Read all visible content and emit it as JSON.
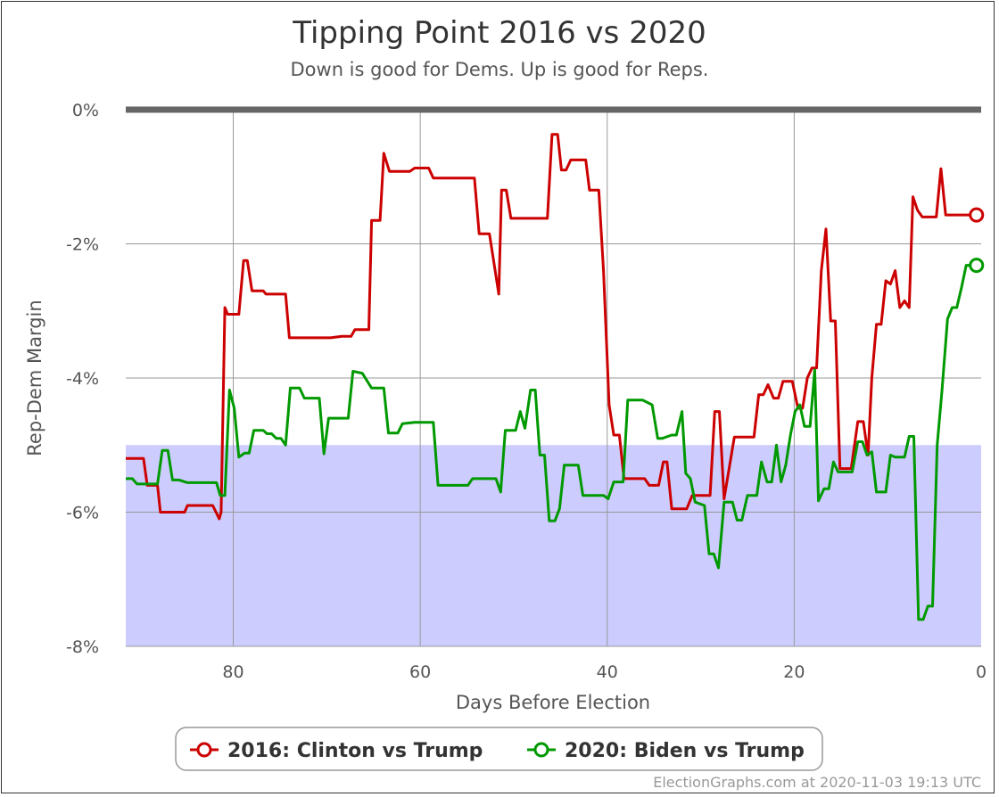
{
  "chart_data": {
    "type": "line",
    "title": "Tipping Point 2016 vs 2020",
    "subtitle": "Down is good for Dems. Up is good for Reps.",
    "xlabel": "Days Before Election",
    "ylabel": "Rep-Dem Margin",
    "x_reversed": true,
    "xlim": [
      91.5,
      0
    ],
    "ylim": [
      -8,
      0
    ],
    "x_ticks": [
      80,
      60,
      40,
      20,
      0
    ],
    "x_tick_labels": [
      "80",
      "60",
      "40",
      "20",
      "0"
    ],
    "y_ticks": [
      0,
      -2,
      -4,
      -6,
      -8
    ],
    "y_tick_labels": [
      "0%",
      "-2%",
      "-4%",
      "-6%",
      "-8%"
    ],
    "shaded_band": {
      "from": -5,
      "to": -8,
      "color": "#ccccff"
    },
    "grid": true,
    "legend_position": "bottom-center",
    "series": [
      {
        "name": "2016: Clinton vs Trump",
        "color": "#cc0000",
        "points": [
          [
            91.5,
            -5.2
          ],
          [
            89.6,
            -5.2
          ],
          [
            89.2,
            -5.6
          ],
          [
            88.1,
            -5.6
          ],
          [
            87.8,
            -6.0
          ],
          [
            85.2,
            -6.0
          ],
          [
            84.9,
            -5.9
          ],
          [
            82.2,
            -5.9
          ],
          [
            81.5,
            -6.1
          ],
          [
            81.3,
            -6.0
          ],
          [
            80.9,
            -2.95
          ],
          [
            80.6,
            -3.05
          ],
          [
            79.4,
            -3.05
          ],
          [
            78.9,
            -2.25
          ],
          [
            78.5,
            -2.25
          ],
          [
            78.0,
            -2.7
          ],
          [
            76.8,
            -2.7
          ],
          [
            76.5,
            -2.75
          ],
          [
            74.4,
            -2.75
          ],
          [
            74.0,
            -3.4
          ],
          [
            69.6,
            -3.4
          ],
          [
            68.4,
            -3.38
          ],
          [
            67.4,
            -3.38
          ],
          [
            67.0,
            -3.28
          ],
          [
            65.5,
            -3.28
          ],
          [
            65.2,
            -1.65
          ],
          [
            64.3,
            -1.65
          ],
          [
            63.9,
            -0.65
          ],
          [
            63.3,
            -0.92
          ],
          [
            61.1,
            -0.92
          ],
          [
            60.6,
            -0.87
          ],
          [
            59.1,
            -0.87
          ],
          [
            58.6,
            -1.02
          ],
          [
            54.2,
            -1.02
          ],
          [
            53.7,
            -1.85
          ],
          [
            52.6,
            -1.85
          ],
          [
            51.6,
            -2.75
          ],
          [
            51.3,
            -1.2
          ],
          [
            50.8,
            -1.2
          ],
          [
            50.3,
            -1.62
          ],
          [
            48.2,
            -1.62
          ],
          [
            47.1,
            -1.62
          ],
          [
            46.4,
            -1.62
          ],
          [
            45.9,
            -0.37
          ],
          [
            45.3,
            -0.37
          ],
          [
            44.9,
            -0.9
          ],
          [
            44.4,
            -0.9
          ],
          [
            43.9,
            -0.75
          ],
          [
            42.3,
            -0.75
          ],
          [
            41.9,
            -1.2
          ],
          [
            40.9,
            -1.2
          ],
          [
            40.4,
            -2.4
          ],
          [
            39.8,
            -4.4
          ],
          [
            39.3,
            -4.85
          ],
          [
            38.7,
            -4.85
          ],
          [
            38.2,
            -5.5
          ],
          [
            36.0,
            -5.5
          ],
          [
            35.5,
            -5.6
          ],
          [
            34.5,
            -5.6
          ],
          [
            34.0,
            -5.25
          ],
          [
            33.6,
            -5.25
          ],
          [
            33.1,
            -5.95
          ],
          [
            31.5,
            -5.95
          ],
          [
            30.9,
            -5.75
          ],
          [
            29.0,
            -5.75
          ],
          [
            28.5,
            -4.5
          ],
          [
            28.0,
            -4.5
          ],
          [
            27.5,
            -5.8
          ],
          [
            26.4,
            -4.88
          ],
          [
            24.3,
            -4.88
          ],
          [
            23.8,
            -4.25
          ],
          [
            23.3,
            -4.25
          ],
          [
            22.8,
            -4.1
          ],
          [
            22.2,
            -4.3
          ],
          [
            21.7,
            -4.3
          ],
          [
            21.2,
            -4.05
          ],
          [
            20.2,
            -4.05
          ],
          [
            19.6,
            -4.45
          ],
          [
            19.1,
            -4.45
          ],
          [
            18.6,
            -4.0
          ],
          [
            18.1,
            -3.85
          ],
          [
            17.6,
            -3.85
          ],
          [
            17.1,
            -2.4
          ],
          [
            16.6,
            -1.78
          ],
          [
            16.1,
            -3.15
          ],
          [
            15.6,
            -3.15
          ],
          [
            15.1,
            -5.35
          ],
          [
            13.9,
            -5.35
          ],
          [
            13.2,
            -4.65
          ],
          [
            12.6,
            -4.65
          ],
          [
            12.1,
            -5.15
          ],
          [
            11.7,
            -4.0
          ],
          [
            11.2,
            -3.2
          ],
          [
            10.7,
            -3.2
          ],
          [
            10.2,
            -2.55
          ],
          [
            9.7,
            -2.6
          ],
          [
            9.2,
            -2.4
          ],
          [
            8.7,
            -2.95
          ],
          [
            8.2,
            -2.85
          ],
          [
            7.7,
            -2.95
          ],
          [
            7.3,
            -1.3
          ],
          [
            6.8,
            -1.5
          ],
          [
            6.3,
            -1.6
          ],
          [
            4.8,
            -1.6
          ],
          [
            4.3,
            -0.88
          ],
          [
            3.8,
            -1.57
          ],
          [
            0.5,
            -1.57
          ]
        ]
      },
      {
        "name": "2020: Biden vs Trump",
        "color": "#009900",
        "points": [
          [
            91.5,
            -5.5
          ],
          [
            90.8,
            -5.5
          ],
          [
            90.3,
            -5.58
          ],
          [
            88.1,
            -5.58
          ],
          [
            87.6,
            -5.08
          ],
          [
            87.0,
            -5.08
          ],
          [
            86.5,
            -5.52
          ],
          [
            85.8,
            -5.52
          ],
          [
            84.9,
            -5.56
          ],
          [
            81.8,
            -5.56
          ],
          [
            81.4,
            -5.75
          ],
          [
            80.9,
            -5.75
          ],
          [
            80.4,
            -4.18
          ],
          [
            79.9,
            -4.45
          ],
          [
            79.4,
            -5.18
          ],
          [
            78.8,
            -5.12
          ],
          [
            78.3,
            -5.12
          ],
          [
            77.8,
            -4.78
          ],
          [
            76.8,
            -4.78
          ],
          [
            76.4,
            -4.83
          ],
          [
            75.9,
            -4.83
          ],
          [
            75.4,
            -4.9
          ],
          [
            74.9,
            -4.9
          ],
          [
            74.4,
            -5.0
          ],
          [
            73.9,
            -4.15
          ],
          [
            72.9,
            -4.15
          ],
          [
            72.4,
            -4.3
          ],
          [
            70.8,
            -4.3
          ],
          [
            70.3,
            -5.13
          ],
          [
            69.8,
            -4.6
          ],
          [
            67.7,
            -4.6
          ],
          [
            67.2,
            -3.9
          ],
          [
            66.2,
            -3.93
          ],
          [
            65.2,
            -4.15
          ],
          [
            63.9,
            -4.15
          ],
          [
            63.4,
            -4.82
          ],
          [
            62.4,
            -4.82
          ],
          [
            61.9,
            -4.68
          ],
          [
            60.6,
            -4.66
          ],
          [
            58.6,
            -4.66
          ],
          [
            58.1,
            -5.6
          ],
          [
            54.9,
            -5.6
          ],
          [
            54.4,
            -5.5
          ],
          [
            51.9,
            -5.5
          ],
          [
            51.4,
            -5.7
          ],
          [
            50.9,
            -4.78
          ],
          [
            49.8,
            -4.78
          ],
          [
            49.3,
            -4.5
          ],
          [
            48.8,
            -4.75
          ],
          [
            48.2,
            -4.18
          ],
          [
            47.7,
            -4.18
          ],
          [
            47.2,
            -5.15
          ],
          [
            46.7,
            -5.15
          ],
          [
            46.2,
            -6.13
          ],
          [
            45.6,
            -6.13
          ],
          [
            45.1,
            -5.95
          ],
          [
            44.6,
            -5.3
          ],
          [
            43.1,
            -5.3
          ],
          [
            42.6,
            -5.75
          ],
          [
            40.4,
            -5.75
          ],
          [
            39.9,
            -5.8
          ],
          [
            39.3,
            -5.55
          ],
          [
            38.3,
            -5.55
          ],
          [
            37.8,
            -4.33
          ],
          [
            36.2,
            -4.33
          ],
          [
            35.2,
            -4.4
          ],
          [
            34.6,
            -4.9
          ],
          [
            34.1,
            -4.9
          ],
          [
            33.1,
            -4.85
          ],
          [
            32.6,
            -4.85
          ],
          [
            32.0,
            -4.5
          ],
          [
            31.6,
            -5.42
          ],
          [
            31.1,
            -5.5
          ],
          [
            30.6,
            -5.85
          ],
          [
            29.6,
            -5.9
          ],
          [
            29.1,
            -6.62
          ],
          [
            28.6,
            -6.62
          ],
          [
            28.1,
            -6.83
          ],
          [
            27.5,
            -5.85
          ],
          [
            26.6,
            -5.85
          ],
          [
            26.1,
            -6.12
          ],
          [
            25.6,
            -6.12
          ],
          [
            25.0,
            -5.75
          ],
          [
            24.0,
            -5.75
          ],
          [
            23.5,
            -5.25
          ],
          [
            22.9,
            -5.55
          ],
          [
            22.4,
            -5.55
          ],
          [
            21.9,
            -5.0
          ],
          [
            21.4,
            -5.55
          ],
          [
            20.9,
            -5.3
          ],
          [
            20.4,
            -4.85
          ],
          [
            19.9,
            -4.5
          ],
          [
            19.4,
            -4.4
          ],
          [
            18.9,
            -4.72
          ],
          [
            18.3,
            -4.72
          ],
          [
            17.8,
            -3.88
          ],
          [
            17.4,
            -5.83
          ],
          [
            16.8,
            -5.65
          ],
          [
            16.3,
            -5.65
          ],
          [
            15.8,
            -5.25
          ],
          [
            15.3,
            -5.4
          ],
          [
            13.8,
            -5.4
          ],
          [
            13.2,
            -4.95
          ],
          [
            12.7,
            -4.95
          ],
          [
            12.2,
            -5.15
          ],
          [
            11.7,
            -5.1
          ],
          [
            11.2,
            -5.7
          ],
          [
            10.2,
            -5.7
          ],
          [
            9.7,
            -5.15
          ],
          [
            9.2,
            -5.18
          ],
          [
            8.2,
            -5.18
          ],
          [
            7.7,
            -4.87
          ],
          [
            7.2,
            -4.87
          ],
          [
            6.7,
            -7.6
          ],
          [
            6.2,
            -7.6
          ],
          [
            5.7,
            -7.4
          ],
          [
            5.2,
            -7.4
          ],
          [
            4.7,
            -5.0
          ],
          [
            4.2,
            -4.2
          ],
          [
            3.6,
            -3.12
          ],
          [
            3.1,
            -2.95
          ],
          [
            2.6,
            -2.95
          ],
          [
            2.1,
            -2.65
          ],
          [
            1.6,
            -2.32
          ],
          [
            0.5,
            -2.32
          ]
        ]
      }
    ],
    "endpoint_markers": true
  },
  "legend": {
    "items": [
      {
        "label": "2016: Clinton vs Trump",
        "color": "#cc0000"
      },
      {
        "label": "2020: Biden vs Trump",
        "color": "#009900"
      }
    ]
  },
  "credit": "ElectionGraphs.com at 2020-11-03 19:13 UTC"
}
